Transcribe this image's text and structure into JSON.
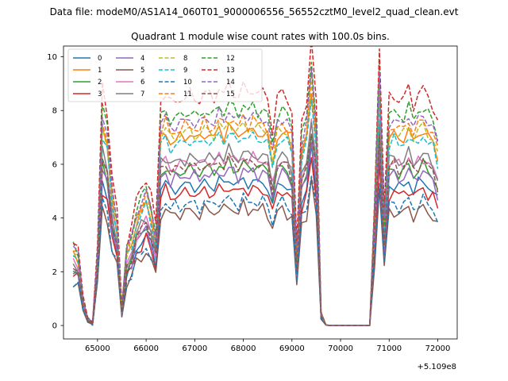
{
  "chart_data": {
    "type": "line",
    "suptitle": "Data file: modeM0/AS1A14_060T01_9000006556_56552cztM0_level2_quad_clean.evt",
    "title": "Quadrant 1 module wise count rates with 100.0s bins.",
    "xlabel": "",
    "ylabel": "",
    "x_offset_label": "+5.109e8",
    "xlim": [
      64300,
      72400
    ],
    "ylim": [
      -0.5,
      10.4
    ],
    "xticks": [
      65000,
      66000,
      67000,
      68000,
      69000,
      70000,
      71000,
      72000
    ],
    "xtick_labels": [
      "65000",
      "66000",
      "67000",
      "68000",
      "69000",
      "70000",
      "71000",
      "72000"
    ],
    "yticks": [
      0,
      2,
      4,
      6,
      8,
      10
    ],
    "ytick_labels": [
      "0",
      "2",
      "4",
      "6",
      "8",
      "10"
    ],
    "grid": false,
    "legend_position": "upper-left",
    "legend_columns": 4,
    "x": [
      64500,
      64600,
      64700,
      64800,
      64900,
      65000,
      65100,
      65200,
      65300,
      65400,
      65500,
      65600,
      65700,
      65800,
      65900,
      66000,
      66100,
      66200,
      66300,
      66400,
      66500,
      66600,
      66700,
      66800,
      66900,
      67000,
      67100,
      67200,
      67300,
      67400,
      67500,
      67600,
      67700,
      67800,
      67900,
      68000,
      68100,
      68200,
      68300,
      68400,
      68500,
      68600,
      68700,
      68800,
      68900,
      69000,
      69100,
      69200,
      69300,
      69400,
      69500,
      69600,
      69700,
      69800,
      69900,
      70000,
      70100,
      70200,
      70300,
      70400,
      70500,
      70600,
      70700,
      70800,
      70900,
      71000,
      71100,
      71200,
      71300,
      71400,
      71500,
      71600,
      71700,
      71800,
      71900,
      72000
    ],
    "base_series": [
      2.6,
      2.5,
      0.9,
      0.25,
      0.1,
      2.5,
      7.3,
      6.6,
      4.6,
      3.6,
      0.55,
      2.6,
      3.0,
      3.9,
      4.2,
      4.6,
      4.0,
      3.1,
      6.9,
      7.2,
      6.8,
      6.9,
      6.95,
      7.05,
      7.1,
      7.0,
      6.9,
      7.2,
      7.05,
      7.0,
      7.3,
      7.1,
      7.4,
      7.2,
      7.0,
      7.4,
      7.1,
      7.3,
      7.1,
      7.2,
      7.0,
      6.0,
      7.0,
      7.2,
      7.0,
      6.6,
      2.4,
      6.3,
      6.9,
      8.8,
      6.8,
      0.4,
      0.02,
      0.0,
      0.0,
      0.0,
      0.0,
      0.0,
      0.0,
      0.0,
      0.0,
      0.0,
      3.9,
      8.6,
      3.6,
      7.0,
      7.1,
      6.9,
      7.0,
      7.3,
      6.8,
      7.1,
      7.3,
      7.0,
      6.8,
      6.2
    ],
    "series": [
      {
        "name": "0",
        "color": "#1f77b4",
        "dash": "solid",
        "scale": 0.74
      },
      {
        "name": "1",
        "color": "#ff7f0e",
        "dash": "solid",
        "scale": 1.0
      },
      {
        "name": "2",
        "color": "#2ca02c",
        "dash": "solid",
        "scale": 0.82
      },
      {
        "name": "3",
        "color": "#d62728",
        "dash": "solid",
        "scale": 0.7
      },
      {
        "name": "4",
        "color": "#9467bd",
        "dash": "solid",
        "scale": 0.79
      },
      {
        "name": "5",
        "color": "#8c564b",
        "dash": "solid",
        "scale": 0.6
      },
      {
        "name": "6",
        "color": "#e377c2",
        "dash": "solid",
        "scale": 0.86
      },
      {
        "name": "7",
        "color": "#7f7f7f",
        "dash": "solid",
        "scale": 0.88
      },
      {
        "name": "8",
        "color": "#bcbd22",
        "dash": "dashed",
        "scale": 1.02
      },
      {
        "name": "9",
        "color": "#17becf",
        "dash": "dashed",
        "scale": 0.97
      },
      {
        "name": "10",
        "color": "#1f77b4",
        "dash": "dashed",
        "scale": 0.64
      },
      {
        "name": "11",
        "color": "#ff7f0e",
        "dash": "dashed",
        "scale": 1.05
      },
      {
        "name": "12",
        "color": "#2ca02c",
        "dash": "dashed",
        "scale": 1.12
      },
      {
        "name": "13",
        "color": "#d62728",
        "dash": "dashed",
        "scale": 1.21
      },
      {
        "name": "14",
        "color": "#9467bd",
        "dash": "dashed",
        "scale": 1.08
      },
      {
        "name": "15",
        "color": "#8c564b",
        "dash": "dashed",
        "scale": 0.84
      }
    ]
  }
}
